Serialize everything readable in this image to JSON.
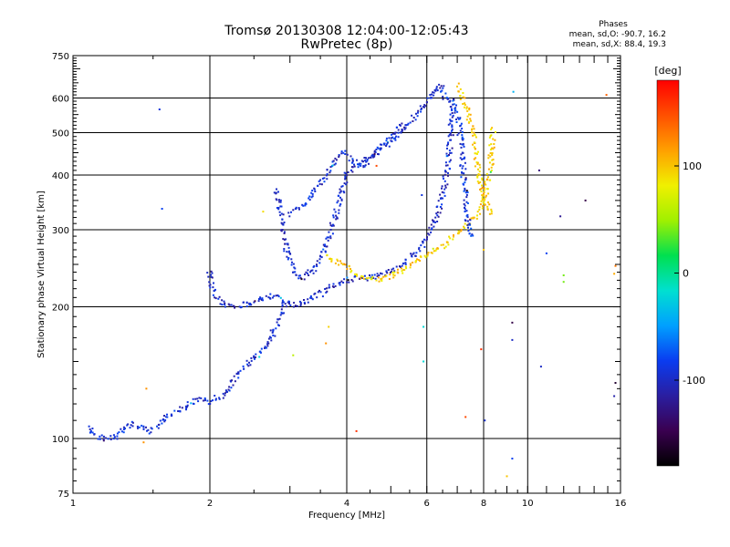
{
  "header": {
    "title_line1": "Tromsø 20130308 12:04:00-12:05:43",
    "title_line2": "RwPretec (8p)"
  },
  "phases": {
    "heading": "Phases",
    "o_line": "mean, sd,O: -90.7, 16.2",
    "x_line": "mean, sd,X:  88.4, 19.3"
  },
  "colorbar": {
    "label": "[deg]",
    "ticks": [
      {
        "value": 100,
        "label": "100"
      },
      {
        "value": 0,
        "label": "0"
      },
      {
        "value": -100,
        "label": "-100"
      }
    ],
    "range": [
      -180,
      180
    ],
    "palette": [
      "#000000",
      "#3a0050",
      "#2a1ea0",
      "#0a3cf0",
      "#00a0ff",
      "#00e0d0",
      "#00e050",
      "#a0f000",
      "#f0f000",
      "#ffa000",
      "#ff5000",
      "#ff0000"
    ]
  },
  "chart_data": {
    "type": "scatter",
    "title": "Tromsø 20130308 12:04:00-12:05:43",
    "subtitle": "RwPretec (8p)",
    "xlabel": "Frequency [MHz]",
    "ylabel": "Stationary phase Virtual Height [km]",
    "x_scale": "log",
    "y_scale": "log",
    "xlim": [
      1,
      16
    ],
    "ylim": [
      75,
      750
    ],
    "grid": true,
    "x_ticks": [
      {
        "value": 1,
        "label": "1"
      },
      {
        "value": 2,
        "label": "2"
      },
      {
        "value": 4,
        "label": "4"
      },
      {
        "value": 6,
        "label": "6"
      },
      {
        "value": 8,
        "label": "8"
      },
      {
        "value": 10,
        "label": "10"
      },
      {
        "value": 16,
        "label": "16"
      }
    ],
    "y_ticks": [
      {
        "value": 75,
        "label": "75"
      },
      {
        "value": 100,
        "label": "100"
      },
      {
        "value": 200,
        "label": "200"
      },
      {
        "value": 300,
        "label": "300"
      },
      {
        "value": 400,
        "label": "400"
      },
      {
        "value": 500,
        "label": "500"
      },
      {
        "value": 600,
        "label": "600"
      },
      {
        "value": 750,
        "label": "750"
      }
    ],
    "x_grid_lines": [
      2,
      4,
      6,
      8,
      10
    ],
    "y_grid_lines": [
      100,
      200,
      300,
      400,
      500,
      600
    ],
    "color_by": "phase [deg]",
    "traces": [
      {
        "phase": -95,
        "points": [
          [
            1.08,
            106
          ],
          [
            1.1,
            104
          ],
          [
            1.13,
            101
          ],
          [
            1.18,
            100
          ],
          [
            1.22,
            100
          ],
          [
            1.27,
            103
          ],
          [
            1.3,
            106
          ],
          [
            1.35,
            108
          ],
          [
            1.42,
            106
          ],
          [
            1.48,
            104
          ],
          [
            1.53,
            107
          ],
          [
            1.58,
            111
          ],
          [
            1.64,
            113
          ],
          [
            1.7,
            115
          ],
          [
            1.76,
            118
          ],
          [
            1.82,
            121
          ],
          [
            1.88,
            122
          ],
          [
            1.95,
            123
          ],
          [
            2.0,
            121
          ],
          [
            2.05,
            124
          ],
          [
            2.1,
            125
          ],
          [
            2.17,
            127
          ],
          [
            2.22,
            131
          ],
          [
            2.28,
            138
          ],
          [
            2.33,
            144
          ],
          [
            2.38,
            146
          ],
          [
            2.45,
            150
          ],
          [
            2.52,
            155
          ],
          [
            2.58,
            158
          ],
          [
            2.65,
            163
          ],
          [
            2.72,
            170
          ],
          [
            2.78,
            178
          ],
          [
            2.84,
            186
          ],
          [
            2.9,
            196
          ],
          [
            2.96,
            205
          ]
        ]
      },
      {
        "phase": -100,
        "points": [
          [
            2.0,
            240
          ],
          [
            2.02,
            225
          ],
          [
            2.05,
            213
          ],
          [
            2.1,
            206
          ],
          [
            2.15,
            202
          ],
          [
            2.22,
            201
          ],
          [
            2.3,
            201
          ],
          [
            2.4,
            203
          ],
          [
            2.55,
            207
          ],
          [
            2.7,
            211
          ],
          [
            2.8,
            212
          ],
          [
            2.9,
            205
          ],
          [
            3.0,
            201
          ],
          [
            3.15,
            204
          ],
          [
            3.3,
            208
          ],
          [
            3.5,
            214
          ],
          [
            3.7,
            222
          ],
          [
            3.9,
            228
          ],
          [
            4.1,
            231
          ],
          [
            4.4,
            233
          ],
          [
            4.7,
            236
          ],
          [
            5.0,
            242
          ],
          [
            5.3,
            251
          ],
          [
            5.6,
            262
          ],
          [
            5.9,
            278
          ],
          [
            6.1,
            296
          ],
          [
            6.3,
            320
          ],
          [
            6.45,
            350
          ],
          [
            6.6,
            390
          ],
          [
            6.7,
            440
          ],
          [
            6.78,
            500
          ],
          [
            6.84,
            560
          ],
          [
            6.9,
            600
          ]
        ]
      },
      {
        "phase": -100,
        "points": [
          [
            2.8,
            370
          ],
          [
            2.85,
            330
          ],
          [
            2.9,
            300
          ],
          [
            2.95,
            272
          ],
          [
            3.0,
            255
          ],
          [
            3.05,
            243
          ],
          [
            3.1,
            236
          ],
          [
            3.15,
            232
          ],
          [
            3.25,
            236
          ],
          [
            3.4,
            245
          ],
          [
            3.55,
            265
          ],
          [
            3.7,
            300
          ],
          [
            3.8,
            330
          ],
          [
            3.9,
            370
          ],
          [
            4.0,
            400
          ],
          [
            4.2,
            420
          ],
          [
            4.4,
            435
          ],
          [
            4.6,
            448
          ],
          [
            4.8,
            462
          ],
          [
            5.0,
            478
          ],
          [
            5.2,
            495
          ],
          [
            5.4,
            515
          ],
          [
            5.6,
            540
          ],
          [
            5.85,
            570
          ],
          [
            6.0,
            590
          ],
          [
            6.2,
            620
          ],
          [
            6.4,
            635
          ],
          [
            6.6,
            628
          ]
        ]
      },
      {
        "phase": -95,
        "points": [
          [
            3.0,
            326
          ],
          [
            3.1,
            333
          ],
          [
            3.2,
            340
          ],
          [
            3.3,
            352
          ],
          [
            3.45,
            372
          ],
          [
            3.6,
            400
          ],
          [
            3.75,
            432
          ],
          [
            3.9,
            450
          ],
          [
            4.05,
            440
          ],
          [
            4.2,
            428
          ],
          [
            4.4,
            422
          ],
          [
            4.6,
            445
          ],
          [
            4.8,
            468
          ],
          [
            5.0,
            490
          ],
          [
            5.2,
            510
          ],
          [
            5.35,
            530
          ]
        ]
      },
      {
        "phase": 95,
        "points": [
          [
            3.6,
            262
          ],
          [
            3.8,
            254
          ],
          [
            4.0,
            246
          ],
          [
            4.2,
            238
          ],
          [
            4.4,
            232
          ],
          [
            4.6,
            230
          ],
          [
            4.8,
            232
          ],
          [
            5.0,
            236
          ],
          [
            5.3,
            242
          ],
          [
            5.6,
            252
          ],
          [
            5.9,
            260
          ],
          [
            6.2,
            268
          ],
          [
            6.5,
            276
          ],
          [
            6.8,
            286
          ],
          [
            7.1,
            296
          ],
          [
            7.4,
            308
          ],
          [
            7.7,
            322
          ],
          [
            7.95,
            340
          ],
          [
            8.1,
            365
          ],
          [
            8.2,
            395
          ],
          [
            8.3,
            430
          ],
          [
            8.35,
            470
          ],
          [
            8.4,
            510
          ]
        ]
      },
      {
        "phase": -90,
        "points": [
          [
            6.3,
            640
          ],
          [
            6.45,
            615
          ],
          [
            6.6,
            600
          ],
          [
            6.8,
            590
          ],
          [
            6.95,
            570
          ],
          [
            7.05,
            540
          ],
          [
            7.1,
            500
          ],
          [
            7.15,
            460
          ],
          [
            7.2,
            420
          ],
          [
            7.25,
            390
          ],
          [
            7.3,
            360
          ],
          [
            7.35,
            335
          ],
          [
            7.4,
            312
          ],
          [
            7.5,
            295
          ],
          [
            7.65,
            285
          ]
        ]
      },
      {
        "phase": 100,
        "points": [
          [
            7.0,
            640
          ],
          [
            7.2,
            600
          ],
          [
            7.35,
            560
          ],
          [
            7.5,
            520
          ],
          [
            7.6,
            490
          ],
          [
            7.7,
            450
          ],
          [
            7.8,
            410
          ],
          [
            7.9,
            380
          ],
          [
            8.0,
            360
          ],
          [
            8.1,
            345
          ],
          [
            8.2,
            335
          ],
          [
            8.3,
            320
          ]
        ]
      }
    ],
    "isolated_points": [
      {
        "x": 1.55,
        "y": 565,
        "phase": -90
      },
      {
        "x": 1.57,
        "y": 335,
        "phase": -80
      },
      {
        "x": 1.45,
        "y": 130,
        "phase": 120
      },
      {
        "x": 1.43,
        "y": 98,
        "phase": 120
      },
      {
        "x": 2.62,
        "y": 330,
        "phase": 90
      },
      {
        "x": 4.65,
        "y": 420,
        "phase": 150
      },
      {
        "x": 4.2,
        "y": 104,
        "phase": 160
      },
      {
        "x": 5.9,
        "y": 180,
        "phase": -20
      },
      {
        "x": 5.9,
        "y": 150,
        "phase": -20
      },
      {
        "x": 5.85,
        "y": 360,
        "phase": -90
      },
      {
        "x": 7.3,
        "y": 112,
        "phase": 150
      },
      {
        "x": 7.9,
        "y": 160,
        "phase": 160
      },
      {
        "x": 8.0,
        "y": 270,
        "phase": 100
      },
      {
        "x": 8.05,
        "y": 110,
        "phase": -95
      },
      {
        "x": 9.0,
        "y": 82,
        "phase": 100
      },
      {
        "x": 9.25,
        "y": 184,
        "phase": -150
      },
      {
        "x": 9.25,
        "y": 168,
        "phase": -100
      },
      {
        "x": 9.3,
        "y": 620,
        "phase": -40
      },
      {
        "x": 9.25,
        "y": 90,
        "phase": -80
      },
      {
        "x": 10.6,
        "y": 410,
        "phase": -130
      },
      {
        "x": 10.7,
        "y": 146,
        "phase": -100
      },
      {
        "x": 11.0,
        "y": 265,
        "phase": -80
      },
      {
        "x": 12.0,
        "y": 236,
        "phase": 40
      },
      {
        "x": 12.0,
        "y": 228,
        "phase": 40
      },
      {
        "x": 11.8,
        "y": 322,
        "phase": -120
      },
      {
        "x": 13.4,
        "y": 350,
        "phase": -150
      },
      {
        "x": 14.9,
        "y": 610,
        "phase": 140
      },
      {
        "x": 15.5,
        "y": 238,
        "phase": 110
      },
      {
        "x": 15.6,
        "y": 248,
        "phase": 130
      },
      {
        "x": 15.6,
        "y": 134,
        "phase": -160
      },
      {
        "x": 15.5,
        "y": 125,
        "phase": -110
      },
      {
        "x": 3.05,
        "y": 155,
        "phase": 60
      },
      {
        "x": 3.6,
        "y": 165,
        "phase": 120
      },
      {
        "x": 3.65,
        "y": 180,
        "phase": 95
      }
    ]
  }
}
